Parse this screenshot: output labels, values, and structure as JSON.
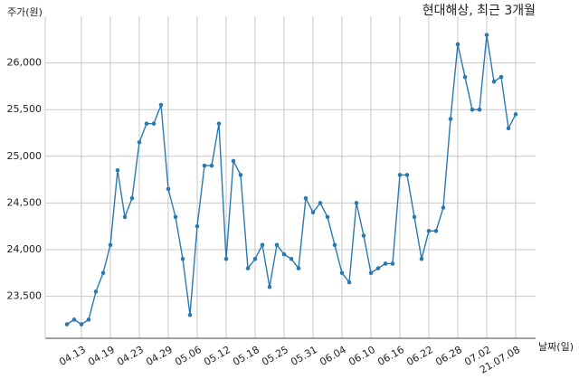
{
  "chart_data": {
    "type": "line",
    "title": "현대해상, 최근 3개월",
    "y_label": "주가(원)",
    "x_label": "날짜(일)",
    "categories": [
      null,
      null,
      "04.13",
      null,
      null,
      null,
      "04.19",
      null,
      null,
      null,
      "04.23",
      null,
      null,
      null,
      "04.29",
      null,
      null,
      null,
      "05.06",
      null,
      null,
      null,
      "05.12",
      null,
      null,
      null,
      "05.18",
      null,
      null,
      null,
      "05.25",
      null,
      null,
      null,
      "05.31",
      null,
      null,
      null,
      "06.04",
      null,
      null,
      null,
      "06.10",
      null,
      null,
      null,
      "06.16",
      null,
      null,
      null,
      "06.22",
      null,
      null,
      null,
      "06.28",
      null,
      null,
      null,
      "07.02",
      null,
      null,
      null,
      "21.07.08"
    ],
    "series": [
      {
        "color": "#2a7ab0",
        "values": [
          23200,
          23250,
          23200,
          23250,
          23550,
          23750,
          24050,
          24850,
          24350,
          24550,
          25150,
          25350,
          25350,
          25550,
          24650,
          24350,
          23900,
          23300,
          24250,
          24900,
          24900,
          25350,
          23900,
          24950,
          24800,
          23800,
          23900,
          24050,
          23600,
          24050,
          23950,
          23900,
          23800,
          24550,
          24400,
          24500,
          24350,
          24050,
          23750,
          23650,
          24500,
          24150,
          23750,
          23800,
          23850,
          23850,
          24800,
          24800,
          24350,
          23900,
          24200,
          24200,
          24450,
          25400,
          26200,
          25850,
          25500,
          25500,
          26300,
          25800,
          25850,
          25300,
          25450
        ]
      }
    ],
    "ylim": [
      23050,
      26500
    ],
    "yticks": [
      {
        "value": 23500,
        "label": "23,500"
      },
      {
        "value": 24000,
        "label": "24,000"
      },
      {
        "value": 24500,
        "label": "24,500"
      },
      {
        "value": 25000,
        "label": "25,000"
      },
      {
        "value": 25500,
        "label": "25,500"
      },
      {
        "value": 26000,
        "label": "26,000"
      }
    ],
    "grid": true
  }
}
